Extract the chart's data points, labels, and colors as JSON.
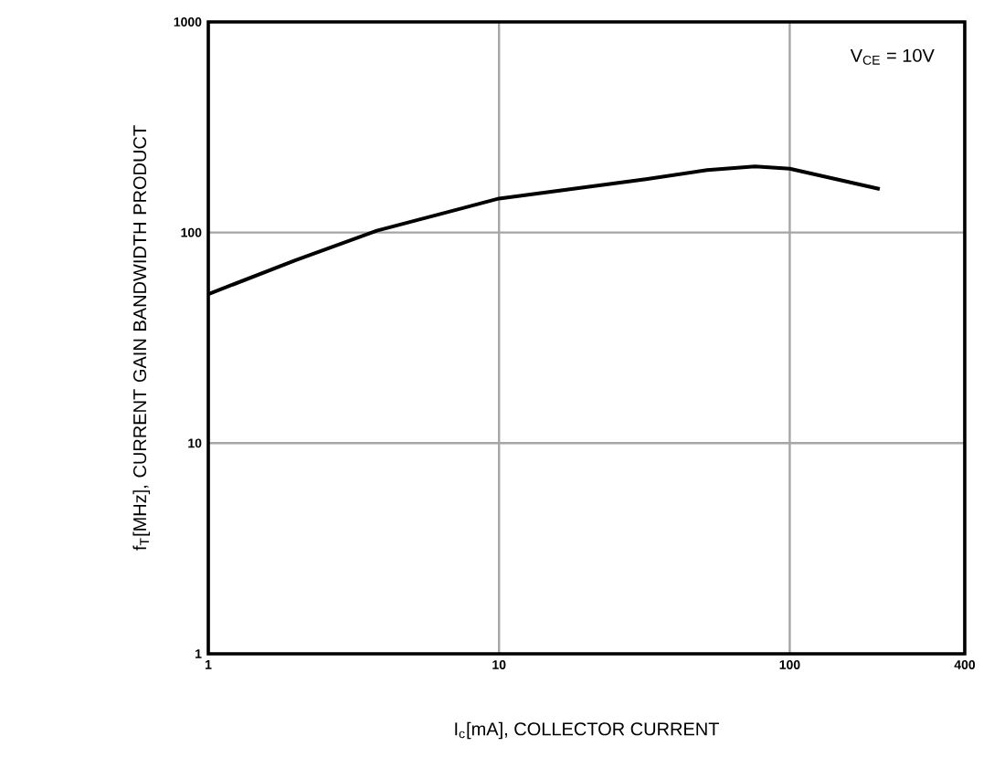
{
  "chart_data": {
    "type": "line",
    "xlabel": "I$_{c}$[mA], COLLECTOR CURRENT",
    "ylabel": "f$_{T}$[MHz], CURRENT GAIN BANDWIDTH PRODUCT",
    "annotations": [
      "V$_{CE}$ = 10V"
    ],
    "log": "xy",
    "grid": true,
    "line_style": "solid",
    "marker": "none",
    "xlim": [
      1,
      400
    ],
    "ylim": [
      1,
      1000
    ],
    "xticks": [
      1,
      10,
      100,
      400
    ],
    "yticks": [
      1,
      10,
      100,
      1000
    ],
    "series": [
      {
        "color": "#000000",
        "x": [
          1,
          2,
          3.8,
          10,
          32,
          52,
          76,
          100,
          204
        ],
        "values": [
          51,
          74,
          102,
          145,
          179,
          198,
          206,
          201,
          161
        ]
      }
    ]
  }
}
